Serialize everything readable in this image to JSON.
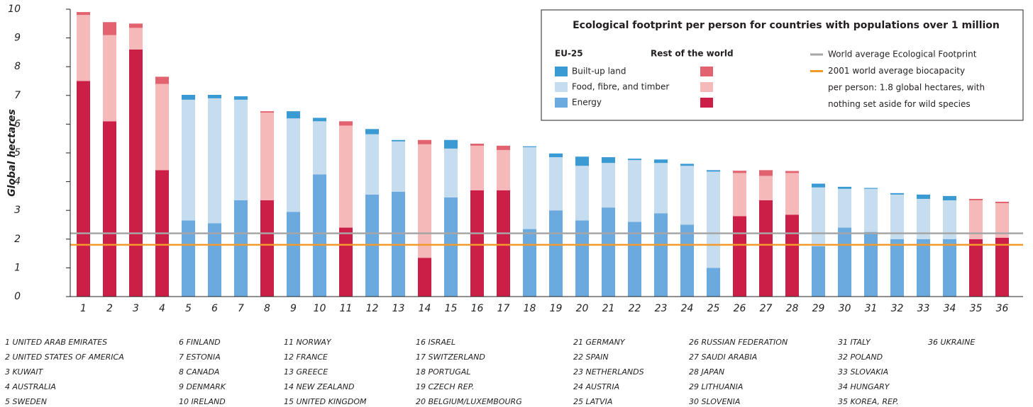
{
  "chart_data": {
    "type": "stacked_bar",
    "title": "Ecological footprint per person for countries with populations over 1 million",
    "y_label": "Global hectares",
    "categories": [
      "1",
      "2",
      "3",
      "4",
      "5",
      "6",
      "7",
      "8",
      "9",
      "10",
      "11",
      "12",
      "13",
      "14",
      "15",
      "16",
      "17",
      "18",
      "19",
      "20",
      "21",
      "22",
      "23",
      "24",
      "25",
      "26",
      "27",
      "28",
      "29",
      "30",
      "31",
      "32",
      "33",
      "34",
      "35",
      "36"
    ],
    "groups": [
      "EU-25",
      "Rest of the world"
    ],
    "category_group": [
      1,
      1,
      1,
      1,
      0,
      0,
      0,
      1,
      0,
      0,
      1,
      0,
      0,
      1,
      0,
      1,
      1,
      0,
      0,
      0,
      0,
      0,
      0,
      0,
      0,
      1,
      1,
      1,
      0,
      0,
      0,
      0,
      0,
      0,
      1,
      1
    ],
    "series": [
      {
        "name": "Built-up land",
        "colors": [
          "#3a9ad3",
          "#e2636f"
        ],
        "values": [
          0.1,
          0.45,
          0.15,
          0.25,
          0.17,
          0.12,
          0.12,
          0.05,
          0.25,
          0.12,
          0.15,
          0.18,
          0.05,
          0.15,
          0.3,
          0.07,
          0.15,
          0.03,
          0.13,
          0.32,
          0.2,
          0.05,
          0.12,
          0.07,
          0.05,
          0.08,
          0.2,
          0.07,
          0.13,
          0.07,
          0.03,
          0.05,
          0.15,
          0.15,
          0.05,
          0.05
        ]
      },
      {
        "name": "Food, fibre, and timber",
        "colors": [
          "#c6dcef",
          "#f6b9b9"
        ],
        "values": [
          2.3,
          3.0,
          0.75,
          3.0,
          4.2,
          4.35,
          3.5,
          3.05,
          3.25,
          1.85,
          3.55,
          2.1,
          1.75,
          3.95,
          1.7,
          1.55,
          1.4,
          2.85,
          1.85,
          1.9,
          1.55,
          2.15,
          1.75,
          2.05,
          3.35,
          1.5,
          0.85,
          1.45,
          2.05,
          1.35,
          1.5,
          1.55,
          1.4,
          1.35,
          1.35,
          1.2
        ]
      },
      {
        "name": "Energy",
        "colors": [
          "#6aaade",
          "#cc1f48"
        ],
        "values": [
          7.5,
          6.1,
          8.6,
          4.4,
          2.65,
          2.55,
          3.35,
          3.35,
          2.95,
          4.25,
          2.4,
          3.55,
          3.65,
          1.35,
          3.45,
          3.7,
          3.7,
          2.35,
          3.0,
          2.65,
          3.1,
          2.6,
          2.9,
          2.5,
          1.0,
          2.8,
          3.35,
          2.85,
          1.75,
          2.4,
          2.25,
          2.0,
          2.0,
          2.0,
          2.0,
          2.05
        ]
      }
    ],
    "reference_lines": [
      {
        "value": 2.2,
        "color": "#a6a6a6",
        "label_lines": [
          "World average Ecological Footprint"
        ]
      },
      {
        "value": 1.8,
        "color": "#f39a2b",
        "label_lines": [
          "2001 world average biocapacity",
          "per person: 1.8 global hectares, with",
          "nothing set aside for wild species"
        ]
      }
    ],
    "ylim": [
      0,
      10
    ],
    "yticks": [
      0,
      1,
      2,
      3,
      4,
      5,
      6,
      7,
      8,
      9,
      10
    ],
    "country_key": [
      "1 UNITED ARAB EMIRATES",
      "2 UNITED STATES OF AMERICA",
      "3 KUWAIT",
      "4 AUSTRALIA",
      "5 SWEDEN",
      "6 FINLAND",
      "7 ESTONIA",
      "8 CANADA",
      "9 DENMARK",
      "10 IRELAND",
      "11 NORWAY",
      "12 FRANCE",
      "13 GREECE",
      "14 NEW ZEALAND",
      "15 UNITED KINGDOM",
      "16 ISRAEL",
      "17 SWITZERLAND",
      "18 PORTUGAL",
      "19 CZECH REP.",
      "20 BELGIUM/LUXEMBOURG",
      "21 GERMANY",
      "22 SPAIN",
      "23 NETHERLANDS",
      "24 AUSTRIA",
      "25 LATVIA",
      "26 RUSSIAN FEDERATION",
      "27 SAUDI ARABIA",
      "28 JAPAN",
      "29 LITHUANIA",
      "30 SLOVENIA",
      "31 ITALY",
      "32 POLAND",
      "33 SLOVAKIA",
      "34 HUNGARY",
      "35 KOREA, REP.",
      "36 UKRAINE"
    ]
  }
}
